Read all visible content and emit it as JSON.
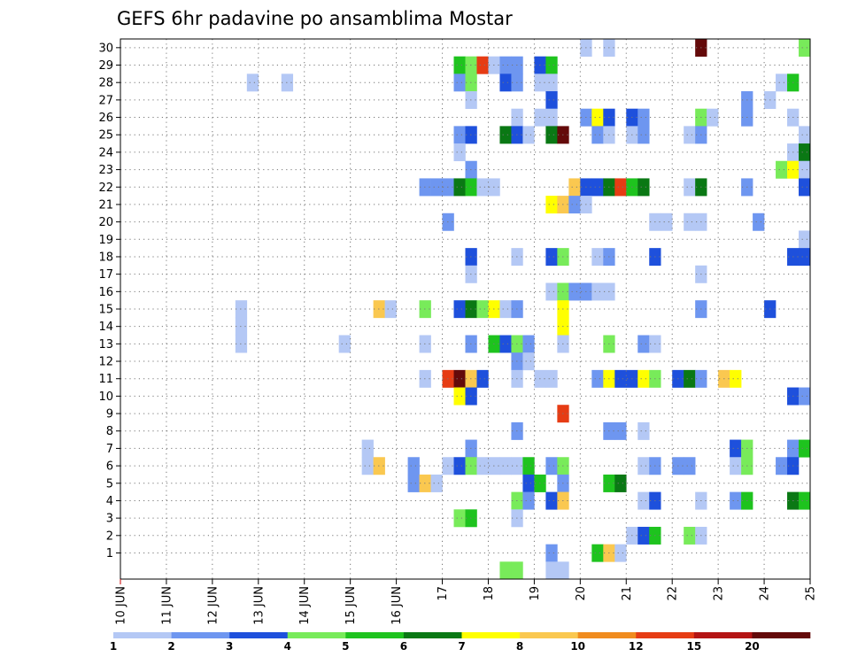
{
  "chart_data": {
    "type": "heatmap",
    "title": "GEFS 6hr padavine po ansamblima Mostar",
    "y_tick_labels": [
      "1",
      "2",
      "3",
      "4",
      "5",
      "6",
      "7",
      "8",
      "9",
      "10",
      "11",
      "12",
      "13",
      "14",
      "15",
      "16",
      "17",
      "18",
      "19",
      "20",
      "21",
      "22",
      "23",
      "24",
      "25",
      "26",
      "27",
      "28",
      "29",
      "30"
    ],
    "x_tick_labels": [
      "10 JUN",
      "11 JUN",
      "12 JUN",
      "13 JUN",
      "14 JUN",
      "15 JUN",
      "16 JUN",
      "17",
      "18",
      "19",
      "20",
      "21",
      "22",
      "23",
      "24",
      "25"
    ],
    "grid": "dotted",
    "legend": {
      "placement": "bottom",
      "colors": [
        "#b4c8f5",
        "#6e96f0",
        "#1e50dc",
        "#78eb5a",
        "#1ec31e",
        "#0a7814",
        "#ffff00",
        "#fac850",
        "#f08c1e",
        "#e63c14",
        "#b41414",
        "#640a0a"
      ],
      "labels": [
        "1",
        "2",
        "3",
        "4",
        "5",
        "6",
        "7",
        "8",
        "10",
        "12",
        "15",
        "20"
      ]
    },
    "x_step_hours": 6,
    "cells": [
      {
        "member": 30,
        "step": 40,
        "bin": 0
      },
      {
        "member": 30,
        "step": 42,
        "bin": 0
      },
      {
        "member": 30,
        "step": 50,
        "bin": 11
      },
      {
        "member": 30,
        "step": 59,
        "bin": 3
      },
      {
        "member": 29,
        "step": 29,
        "bin": 4
      },
      {
        "member": 29,
        "step": 30,
        "bin": 3
      },
      {
        "member": 29,
        "step": 31,
        "bin": 9
      },
      {
        "member": 29,
        "step": 32,
        "bin": 0
      },
      {
        "member": 29,
        "step": 33,
        "bin": 1
      },
      {
        "member": 29,
        "step": 34,
        "bin": 1
      },
      {
        "member": 29,
        "step": 36,
        "bin": 2
      },
      {
        "member": 29,
        "step": 37,
        "bin": 4
      },
      {
        "member": 28,
        "step": 11,
        "bin": 0
      },
      {
        "member": 28,
        "step": 14,
        "bin": 0
      },
      {
        "member": 28,
        "step": 29,
        "bin": 1
      },
      {
        "member": 28,
        "step": 30,
        "bin": 3
      },
      {
        "member": 28,
        "step": 33,
        "bin": 2
      },
      {
        "member": 28,
        "step": 34,
        "bin": 1
      },
      {
        "member": 28,
        "step": 36,
        "bin": 0
      },
      {
        "member": 28,
        "step": 37,
        "bin": 0
      },
      {
        "member": 28,
        "step": 57,
        "bin": 0
      },
      {
        "member": 28,
        "step": 58,
        "bin": 4
      },
      {
        "member": 27,
        "step": 30,
        "bin": 0
      },
      {
        "member": 27,
        "step": 37,
        "bin": 2
      },
      {
        "member": 27,
        "step": 54,
        "bin": 1
      },
      {
        "member": 27,
        "step": 56,
        "bin": 0
      },
      {
        "member": 26,
        "step": 34,
        "bin": 0
      },
      {
        "member": 26,
        "step": 36,
        "bin": 0
      },
      {
        "member": 26,
        "step": 37,
        "bin": 0
      },
      {
        "member": 26,
        "step": 40,
        "bin": 1
      },
      {
        "member": 26,
        "step": 41,
        "bin": 6
      },
      {
        "member": 26,
        "step": 42,
        "bin": 2
      },
      {
        "member": 26,
        "step": 44,
        "bin": 2
      },
      {
        "member": 26,
        "step": 45,
        "bin": 1
      },
      {
        "member": 26,
        "step": 50,
        "bin": 3
      },
      {
        "member": 26,
        "step": 51,
        "bin": 0
      },
      {
        "member": 26,
        "step": 54,
        "bin": 1
      },
      {
        "member": 26,
        "step": 58,
        "bin": 0
      },
      {
        "member": 25,
        "step": 29,
        "bin": 1
      },
      {
        "member": 25,
        "step": 30,
        "bin": 2
      },
      {
        "member": 25,
        "step": 33,
        "bin": 5
      },
      {
        "member": 25,
        "step": 34,
        "bin": 2
      },
      {
        "member": 25,
        "step": 35,
        "bin": 0
      },
      {
        "member": 25,
        "step": 37,
        "bin": 5
      },
      {
        "member": 25,
        "step": 38,
        "bin": 11
      },
      {
        "member": 25,
        "step": 41,
        "bin": 1
      },
      {
        "member": 25,
        "step": 42,
        "bin": 0
      },
      {
        "member": 25,
        "step": 44,
        "bin": 0
      },
      {
        "member": 25,
        "step": 45,
        "bin": 1
      },
      {
        "member": 25,
        "step": 49,
        "bin": 0
      },
      {
        "member": 25,
        "step": 50,
        "bin": 1
      },
      {
        "member": 25,
        "step": 59,
        "bin": 0
      },
      {
        "member": 24,
        "step": 29,
        "bin": 0
      },
      {
        "member": 24,
        "step": 58,
        "bin": 0
      },
      {
        "member": 24,
        "step": 59,
        "bin": 5
      },
      {
        "member": 23,
        "step": 30,
        "bin": 1
      },
      {
        "member": 23,
        "step": 57,
        "bin": 3
      },
      {
        "member": 23,
        "step": 58,
        "bin": 6
      },
      {
        "member": 23,
        "step": 59,
        "bin": 0
      },
      {
        "member": 22,
        "step": 26,
        "bin": 1
      },
      {
        "member": 22,
        "step": 27,
        "bin": 1
      },
      {
        "member": 22,
        "step": 28,
        "bin": 1
      },
      {
        "member": 22,
        "step": 29,
        "bin": 5
      },
      {
        "member": 22,
        "step": 30,
        "bin": 4
      },
      {
        "member": 22,
        "step": 31,
        "bin": 0
      },
      {
        "member": 22,
        "step": 32,
        "bin": 0
      },
      {
        "member": 22,
        "step": 39,
        "bin": 7
      },
      {
        "member": 22,
        "step": 40,
        "bin": 2
      },
      {
        "member": 22,
        "step": 41,
        "bin": 2
      },
      {
        "member": 22,
        "step": 42,
        "bin": 5
      },
      {
        "member": 22,
        "step": 43,
        "bin": 9
      },
      {
        "member": 22,
        "step": 44,
        "bin": 4
      },
      {
        "member": 22,
        "step": 45,
        "bin": 5
      },
      {
        "member": 22,
        "step": 49,
        "bin": 0
      },
      {
        "member": 22,
        "step": 50,
        "bin": 5
      },
      {
        "member": 22,
        "step": 54,
        "bin": 1
      },
      {
        "member": 22,
        "step": 59,
        "bin": 2
      },
      {
        "member": 21,
        "step": 37,
        "bin": 6
      },
      {
        "member": 21,
        "step": 38,
        "bin": 7
      },
      {
        "member": 21,
        "step": 39,
        "bin": 1
      },
      {
        "member": 21,
        "step": 40,
        "bin": 0
      },
      {
        "member": 20,
        "step": 28,
        "bin": 1
      },
      {
        "member": 20,
        "step": 46,
        "bin": 0
      },
      {
        "member": 20,
        "step": 47,
        "bin": 0
      },
      {
        "member": 20,
        "step": 49,
        "bin": 0
      },
      {
        "member": 20,
        "step": 50,
        "bin": 0
      },
      {
        "member": 20,
        "step": 55,
        "bin": 1
      },
      {
        "member": 19,
        "step": 59,
        "bin": 0
      },
      {
        "member": 18,
        "step": 30,
        "bin": 2
      },
      {
        "member": 18,
        "step": 34,
        "bin": 0
      },
      {
        "member": 18,
        "step": 37,
        "bin": 2
      },
      {
        "member": 18,
        "step": 38,
        "bin": 3
      },
      {
        "member": 18,
        "step": 41,
        "bin": 0
      },
      {
        "member": 18,
        "step": 42,
        "bin": 1
      },
      {
        "member": 18,
        "step": 46,
        "bin": 2
      },
      {
        "member": 18,
        "step": 58,
        "bin": 2
      },
      {
        "member": 18,
        "step": 59,
        "bin": 2
      },
      {
        "member": 17,
        "step": 30,
        "bin": 0
      },
      {
        "member": 17,
        "step": 50,
        "bin": 0
      },
      {
        "member": 16,
        "step": 37,
        "bin": 0
      },
      {
        "member": 16,
        "step": 38,
        "bin": 3
      },
      {
        "member": 16,
        "step": 39,
        "bin": 1
      },
      {
        "member": 16,
        "step": 40,
        "bin": 1
      },
      {
        "member": 16,
        "step": 41,
        "bin": 0
      },
      {
        "member": 16,
        "step": 42,
        "bin": 0
      },
      {
        "member": 15,
        "step": 10,
        "bin": 0
      },
      {
        "member": 15,
        "step": 22,
        "bin": 7
      },
      {
        "member": 15,
        "step": 23,
        "bin": 0
      },
      {
        "member": 15,
        "step": 26,
        "bin": 3
      },
      {
        "member": 15,
        "step": 29,
        "bin": 2
      },
      {
        "member": 15,
        "step": 30,
        "bin": 5
      },
      {
        "member": 15,
        "step": 31,
        "bin": 3
      },
      {
        "member": 15,
        "step": 32,
        "bin": 6
      },
      {
        "member": 15,
        "step": 33,
        "bin": 0
      },
      {
        "member": 15,
        "step": 34,
        "bin": 1
      },
      {
        "member": 15,
        "step": 38,
        "bin": 6
      },
      {
        "member": 15,
        "step": 50,
        "bin": 1
      },
      {
        "member": 15,
        "step": 56,
        "bin": 2
      },
      {
        "member": 14,
        "step": 10,
        "bin": 0
      },
      {
        "member": 14,
        "step": 38,
        "bin": 6
      },
      {
        "member": 13,
        "step": 10,
        "bin": 0
      },
      {
        "member": 13,
        "step": 19,
        "bin": 0
      },
      {
        "member": 13,
        "step": 26,
        "bin": 0
      },
      {
        "member": 13,
        "step": 30,
        "bin": 1
      },
      {
        "member": 13,
        "step": 32,
        "bin": 4
      },
      {
        "member": 13,
        "step": 33,
        "bin": 2
      },
      {
        "member": 13,
        "step": 34,
        "bin": 3
      },
      {
        "member": 13,
        "step": 35,
        "bin": 1
      },
      {
        "member": 13,
        "step": 38,
        "bin": 0
      },
      {
        "member": 13,
        "step": 42,
        "bin": 3
      },
      {
        "member": 13,
        "step": 45,
        "bin": 1
      },
      {
        "member": 13,
        "step": 46,
        "bin": 0
      },
      {
        "member": 12,
        "step": 34,
        "bin": 1
      },
      {
        "member": 12,
        "step": 35,
        "bin": 0
      },
      {
        "member": 11,
        "step": 26,
        "bin": 0
      },
      {
        "member": 11,
        "step": 28,
        "bin": 9
      },
      {
        "member": 11,
        "step": 29,
        "bin": 11
      },
      {
        "member": 11,
        "step": 30,
        "bin": 7
      },
      {
        "member": 11,
        "step": 31,
        "bin": 2
      },
      {
        "member": 11,
        "step": 34,
        "bin": 0
      },
      {
        "member": 11,
        "step": 36,
        "bin": 0
      },
      {
        "member": 11,
        "step": 37,
        "bin": 0
      },
      {
        "member": 11,
        "step": 41,
        "bin": 1
      },
      {
        "member": 11,
        "step": 42,
        "bin": 6
      },
      {
        "member": 11,
        "step": 43,
        "bin": 2
      },
      {
        "member": 11,
        "step": 44,
        "bin": 2
      },
      {
        "member": 11,
        "step": 45,
        "bin": 6
      },
      {
        "member": 11,
        "step": 46,
        "bin": 3
      },
      {
        "member": 11,
        "step": 48,
        "bin": 2
      },
      {
        "member": 11,
        "step": 49,
        "bin": 5
      },
      {
        "member": 11,
        "step": 50,
        "bin": 1
      },
      {
        "member": 11,
        "step": 52,
        "bin": 7
      },
      {
        "member": 11,
        "step": 53,
        "bin": 6
      },
      {
        "member": 10,
        "step": 29,
        "bin": 6
      },
      {
        "member": 10,
        "step": 30,
        "bin": 2
      },
      {
        "member": 10,
        "step": 58,
        "bin": 2
      },
      {
        "member": 10,
        "step": 59,
        "bin": 1
      },
      {
        "member": 9,
        "step": 38,
        "bin": 9
      },
      {
        "member": 8,
        "step": 34,
        "bin": 1
      },
      {
        "member": 8,
        "step": 42,
        "bin": 1
      },
      {
        "member": 8,
        "step": 43,
        "bin": 1
      },
      {
        "member": 8,
        "step": 45,
        "bin": 0
      },
      {
        "member": 7,
        "step": 21,
        "bin": 0
      },
      {
        "member": 7,
        "step": 30,
        "bin": 1
      },
      {
        "member": 7,
        "step": 53,
        "bin": 2
      },
      {
        "member": 7,
        "step": 54,
        "bin": 3
      },
      {
        "member": 7,
        "step": 58,
        "bin": 1
      },
      {
        "member": 7,
        "step": 59,
        "bin": 4
      },
      {
        "member": 6,
        "step": 21,
        "bin": 0
      },
      {
        "member": 6,
        "step": 22,
        "bin": 7
      },
      {
        "member": 6,
        "step": 25,
        "bin": 1
      },
      {
        "member": 6,
        "step": 28,
        "bin": 0
      },
      {
        "member": 6,
        "step": 29,
        "bin": 2
      },
      {
        "member": 6,
        "step": 30,
        "bin": 3
      },
      {
        "member": 6,
        "step": 31,
        "bin": 0
      },
      {
        "member": 6,
        "step": 32,
        "bin": 0
      },
      {
        "member": 6,
        "step": 33,
        "bin": 0
      },
      {
        "member": 6,
        "step": 34,
        "bin": 0
      },
      {
        "member": 6,
        "step": 35,
        "bin": 4
      },
      {
        "member": 6,
        "step": 37,
        "bin": 1
      },
      {
        "member": 6,
        "step": 38,
        "bin": 3
      },
      {
        "member": 6,
        "step": 45,
        "bin": 0
      },
      {
        "member": 6,
        "step": 46,
        "bin": 1
      },
      {
        "member": 6,
        "step": 48,
        "bin": 1
      },
      {
        "member": 6,
        "step": 49,
        "bin": 1
      },
      {
        "member": 6,
        "step": 53,
        "bin": 0
      },
      {
        "member": 6,
        "step": 54,
        "bin": 3
      },
      {
        "member": 6,
        "step": 57,
        "bin": 1
      },
      {
        "member": 6,
        "step": 58,
        "bin": 2
      },
      {
        "member": 5,
        "step": 25,
        "bin": 1
      },
      {
        "member": 5,
        "step": 26,
        "bin": 7
      },
      {
        "member": 5,
        "step": 27,
        "bin": 0
      },
      {
        "member": 5,
        "step": 35,
        "bin": 2
      },
      {
        "member": 5,
        "step": 36,
        "bin": 4
      },
      {
        "member": 5,
        "step": 38,
        "bin": 1
      },
      {
        "member": 5,
        "step": 42,
        "bin": 4
      },
      {
        "member": 5,
        "step": 43,
        "bin": 5
      },
      {
        "member": 4,
        "step": 34,
        "bin": 3
      },
      {
        "member": 4,
        "step": 35,
        "bin": 1
      },
      {
        "member": 4,
        "step": 37,
        "bin": 2
      },
      {
        "member": 4,
        "step": 38,
        "bin": 7
      },
      {
        "member": 4,
        "step": 45,
        "bin": 0
      },
      {
        "member": 4,
        "step": 46,
        "bin": 2
      },
      {
        "member": 4,
        "step": 50,
        "bin": 0
      },
      {
        "member": 4,
        "step": 53,
        "bin": 1
      },
      {
        "member": 4,
        "step": 54,
        "bin": 4
      },
      {
        "member": 4,
        "step": 58,
        "bin": 5
      },
      {
        "member": 4,
        "step": 59,
        "bin": 4
      },
      {
        "member": 3,
        "step": 29,
        "bin": 3
      },
      {
        "member": 3,
        "step": 30,
        "bin": 4
      },
      {
        "member": 3,
        "step": 34,
        "bin": 0
      },
      {
        "member": 2,
        "step": 44,
        "bin": 0
      },
      {
        "member": 2,
        "step": 45,
        "bin": 2
      },
      {
        "member": 2,
        "step": 46,
        "bin": 4
      },
      {
        "member": 2,
        "step": 49,
        "bin": 3
      },
      {
        "member": 2,
        "step": 50,
        "bin": 0
      },
      {
        "member": 1,
        "step": 37,
        "bin": 1
      },
      {
        "member": 1,
        "step": 41,
        "bin": 4
      },
      {
        "member": 1,
        "step": 42,
        "bin": 7
      },
      {
        "member": 1,
        "step": 43,
        "bin": 0
      },
      {
        "member": 0,
        "step": 33,
        "bin": 3
      },
      {
        "member": 0,
        "step": 34,
        "bin": 3
      },
      {
        "member": 0,
        "step": 37,
        "bin": 0
      },
      {
        "member": 0,
        "step": 38,
        "bin": 0
      }
    ]
  }
}
